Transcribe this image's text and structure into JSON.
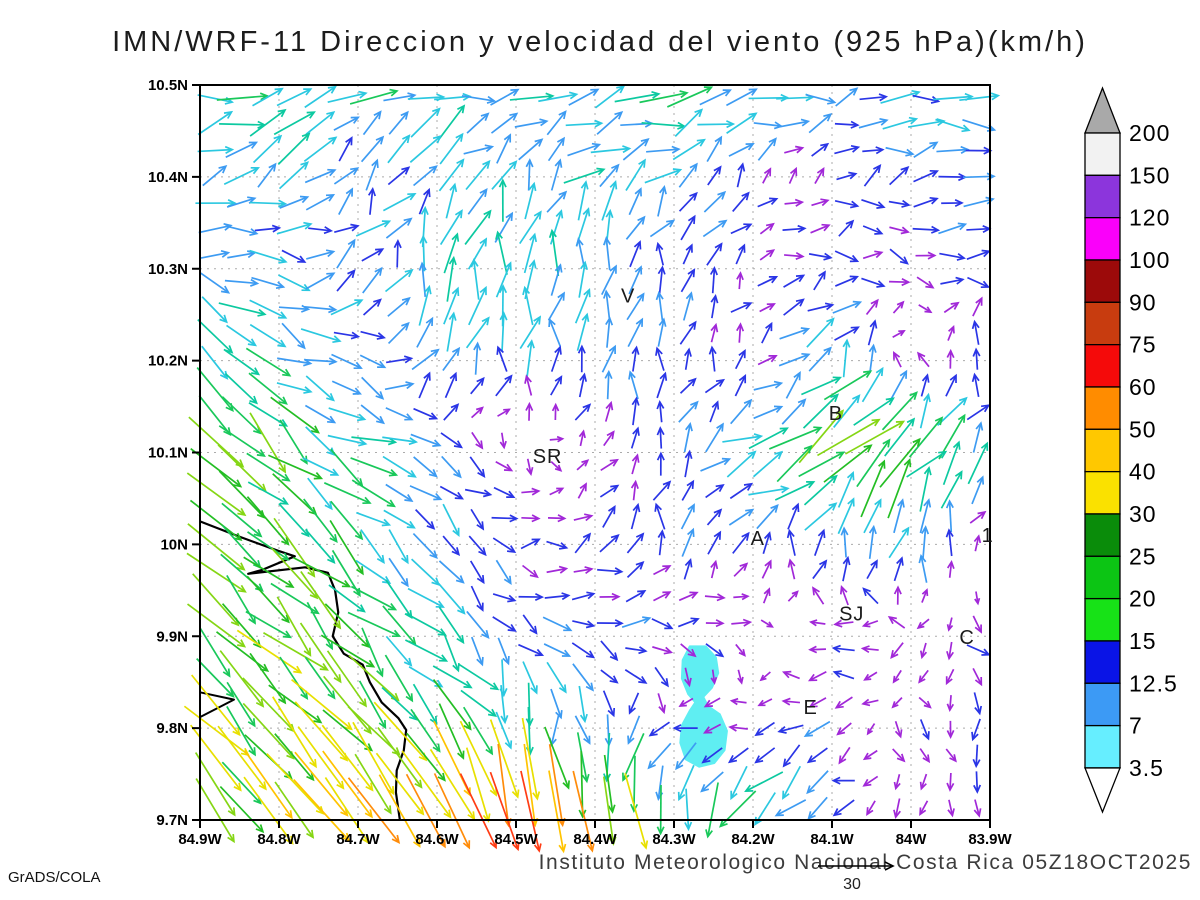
{
  "title": "IMN/WRF-11 Direccion y velocidad del viento (925 hPa)(km/h)",
  "footer": {
    "institute_line": "Instituto Meteorologico Nacional Costa Rica 05Z18OCT2025",
    "credit": "GrADS/COLA",
    "reference_vector_label": "30"
  },
  "chart_data": {
    "type": "vector_field",
    "title": "IMN/WRF-11 Direccion y velocidad del viento (925 hPa)(km/h)",
    "units": "km/h",
    "level": "925 hPa",
    "valid_time": "05Z18OCT2025",
    "grid_lines": true,
    "x_axis": {
      "ticks": [
        "84.9W",
        "84.8W",
        "84.7W",
        "84.6W",
        "84.5W",
        "84.4W",
        "84.3W",
        "84.2W",
        "84.1W",
        "84W",
        "83.9W"
      ],
      "lon_west_values": [
        84.9,
        84.8,
        84.7,
        84.6,
        84.5,
        84.4,
        84.3,
        84.2,
        84.1,
        84.0,
        83.9
      ]
    },
    "y_axis": {
      "ticks": [
        "10.5N",
        "10.4N",
        "10.3N",
        "10.2N",
        "10.1N",
        "10N",
        "9.9N",
        "9.8N",
        "9.7N"
      ],
      "lat_north_values": [
        10.5,
        10.4,
        10.3,
        10.2,
        10.1,
        10.0,
        9.9,
        9.8,
        9.7
      ]
    },
    "colorbar": {
      "labels_top_to_bottom": [
        "200",
        "150",
        "120",
        "100",
        "90",
        "75",
        "60",
        "50",
        "40",
        "30",
        "25",
        "20",
        "15",
        "12.5",
        "7",
        "3.5"
      ],
      "box_colors_top_to_bottom": [
        "#f2f2f2",
        "#8c35dc",
        "#fa00fa",
        "#9c0a0a",
        "#c83c0f",
        "#f50a0a",
        "#ff8c00",
        "#ffc800",
        "#fae100",
        "#0a8c0a",
        "#0cc514",
        "#17e217",
        "#0a14e6",
        "#3c9af5",
        "#66eeff"
      ],
      "arrow_above_color": "#a9a9a9",
      "arrow_below_color": "#ffffff"
    },
    "reference_vector_kmh": 30,
    "stations": [
      {
        "label": "V",
        "lon_w": 84.358,
        "lat_n": 10.271
      },
      {
        "label": "B",
        "lon_w": 84.095,
        "lat_n": 10.143
      },
      {
        "label": "SR",
        "lon_w": 84.46,
        "lat_n": 10.096
      },
      {
        "label": "A",
        "lon_w": 84.194,
        "lat_n": 10.007
      },
      {
        "label": "1",
        "lon_w": 83.903,
        "lat_n": 10.01
      },
      {
        "label": "SJ",
        "lon_w": 84.075,
        "lat_n": 9.925
      },
      {
        "label": "C",
        "lon_w": 83.929,
        "lat_n": 9.899
      },
      {
        "label": "E",
        "lon_w": 84.127,
        "lat_n": 9.823
      }
    ],
    "coastline_lonlat": [
      [
        84.9,
        10.025
      ],
      [
        84.849,
        10.008
      ],
      [
        84.801,
        9.993
      ],
      [
        84.78,
        9.987
      ],
      [
        84.822,
        9.972
      ],
      [
        84.839,
        9.968
      ],
      [
        84.767,
        9.975
      ],
      [
        84.738,
        9.969
      ],
      [
        84.729,
        9.95
      ],
      [
        84.725,
        9.926
      ],
      [
        84.732,
        9.9
      ],
      [
        84.718,
        9.881
      ],
      [
        84.694,
        9.869
      ],
      [
        84.685,
        9.85
      ],
      [
        84.67,
        9.828
      ],
      [
        84.649,
        9.811
      ],
      [
        84.639,
        9.798
      ],
      [
        84.642,
        9.776
      ],
      [
        84.651,
        9.754
      ],
      [
        84.652,
        9.73
      ],
      [
        84.647,
        9.7
      ]
    ],
    "sand_spit_lonlat": [
      [
        84.9,
        9.839
      ],
      [
        84.857,
        9.831
      ],
      [
        84.9,
        9.812
      ]
    ],
    "shaded_region": {
      "color": "#5feef2",
      "outline_lonlat": [
        [
          84.28,
          9.889
        ],
        [
          84.26,
          9.889
        ],
        [
          84.247,
          9.877
        ],
        [
          84.244,
          9.86
        ],
        [
          84.252,
          9.844
        ],
        [
          84.263,
          9.834
        ],
        [
          84.257,
          9.824
        ],
        [
          84.242,
          9.815
        ],
        [
          84.233,
          9.797
        ],
        [
          84.236,
          9.776
        ],
        [
          84.249,
          9.762
        ],
        [
          84.268,
          9.758
        ],
        [
          84.285,
          9.766
        ],
        [
          84.292,
          9.784
        ],
        [
          84.29,
          9.803
        ],
        [
          84.28,
          9.819
        ],
        [
          84.273,
          9.828
        ],
        [
          84.282,
          9.837
        ],
        [
          84.29,
          9.854
        ],
        [
          84.289,
          9.874
        ]
      ]
    },
    "wind_grid": {
      "lon_w": [
        84.9,
        84.8,
        84.7,
        84.6,
        84.5,
        84.4,
        84.3,
        84.2,
        84.1,
        84.0,
        83.9
      ],
      "lat_n": [
        10.5,
        10.4,
        10.3,
        10.2,
        10.1,
        10.0,
        9.9,
        9.8,
        9.7
      ],
      "u_kmh": [
        [
          20,
          18,
          17,
          15,
          14,
          16,
          17,
          14,
          11,
          13,
          14
        ],
        [
          12,
          10,
          5,
          9,
          6,
          10,
          8,
          4,
          5,
          8,
          10
        ],
        [
          14,
          12,
          8,
          4,
          2,
          2,
          2,
          3,
          7,
          6,
          8
        ],
        [
          16,
          14,
          11,
          3,
          1,
          1,
          2,
          3,
          10,
          -3,
          1
        ],
        [
          22,
          18,
          14,
          8,
          1,
          3,
          1,
          16,
          22,
          18,
          10
        ],
        [
          18,
          18,
          15,
          9,
          7,
          5,
          1,
          4,
          2,
          4,
          -3
        ],
        [
          19,
          18,
          15,
          10,
          7,
          9,
          9,
          3,
          -5,
          -6,
          6
        ],
        [
          20,
          20,
          19,
          15,
          4,
          1,
          -6,
          -6,
          -8,
          4,
          0
        ],
        [
          20,
          23,
          26,
          28,
          15,
          5,
          2,
          -15,
          -6,
          -1,
          -2
        ]
      ],
      "v_kmh": [
        [
          3,
          4,
          2,
          5,
          2,
          3,
          2,
          3,
          2,
          2,
          2
        ],
        [
          8,
          8,
          10,
          8,
          11,
          10,
          8,
          4,
          3,
          2,
          2
        ],
        [
          -4,
          -5,
          6,
          16,
          18,
          12,
          9,
          4,
          1,
          -3,
          0
        ],
        [
          -11,
          -10,
          -3,
          13,
          12,
          10,
          9,
          3,
          14,
          3,
          9
        ],
        [
          -20,
          -16,
          -10,
          -5,
          -4,
          3,
          8,
          4,
          18,
          20,
          10
        ],
        [
          -17,
          -17,
          -13,
          -8,
          -2,
          5,
          9,
          6,
          10,
          14,
          2
        ],
        [
          -20,
          -18,
          -16,
          -11,
          -7,
          -2,
          -3,
          -3,
          1,
          -2,
          -6
        ],
        [
          -22,
          -22,
          -23,
          -20,
          -17,
          -15,
          -5,
          0,
          -1,
          -3,
          -6
        ],
        [
          -24,
          -30,
          -37,
          -48,
          -78,
          -45,
          -20,
          -22,
          -4,
          -5,
          -5
        ]
      ]
    },
    "arrow_speed_colors": [
      {
        "max_kmh": 6,
        "color": "#a128d8"
      },
      {
        "max_kmh": 9.5,
        "color": "#2a35e6"
      },
      {
        "max_kmh": 13,
        "color": "#3d9bf2"
      },
      {
        "max_kmh": 16.5,
        "color": "#2bc8e0"
      },
      {
        "max_kmh": 20,
        "color": "#0cc9a0"
      },
      {
        "max_kmh": 24.5,
        "color": "#19c85a"
      },
      {
        "max_kmh": 29,
        "color": "#24be24"
      },
      {
        "max_kmh": 34,
        "color": "#85d614"
      },
      {
        "max_kmh": 42,
        "color": "#e8e000"
      },
      {
        "max_kmh": 52,
        "color": "#ffc300"
      },
      {
        "max_kmh": 62,
        "color": "#ff8c0a"
      },
      {
        "max_kmh": 80,
        "color": "#ff3c14"
      },
      {
        "max_kmh": 95,
        "color": "#f01428"
      },
      {
        "max_kmh": 9999,
        "color": "#f000c8"
      }
    ]
  }
}
